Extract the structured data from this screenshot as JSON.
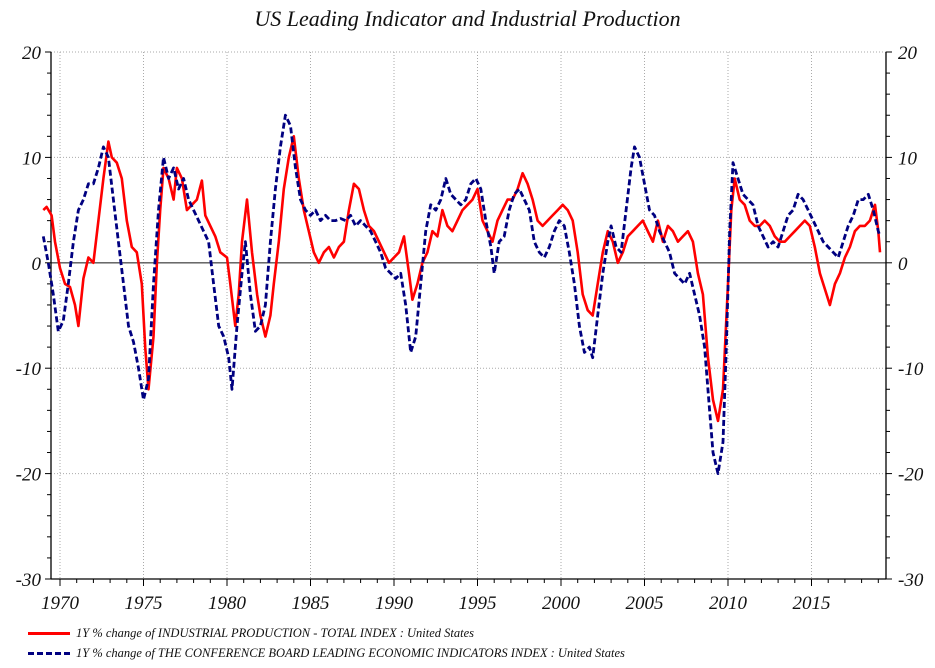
{
  "chart_data": {
    "type": "line",
    "title": "US Leading Indicator and Industrial Production",
    "xlabel": "",
    "ylabel": "",
    "xlim": [
      1969.0,
      2019.5
    ],
    "ylim": [
      -30,
      20
    ],
    "grid": true,
    "x_ticks": [
      1970,
      1975,
      1980,
      1985,
      1990,
      1995,
      2000,
      2005,
      2010,
      2015
    ],
    "y_ticks": [
      20,
      10,
      0,
      -10,
      -20,
      -30
    ],
    "y_ticks_right": [
      20,
      10,
      0,
      -10,
      -20,
      -30
    ],
    "legend_position": "bottom",
    "series": [
      {
        "name": "1Y % change of INDUSTRIAL PRODUCTION - TOTAL INDEX : United States",
        "color": "#ff0000",
        "style": "solid",
        "x": [
          1969.0,
          1969.2,
          1969.5,
          1969.7,
          1970.0,
          1970.3,
          1970.6,
          1970.9,
          1971.1,
          1971.4,
          1971.7,
          1972.0,
          1972.3,
          1972.6,
          1972.9,
          1973.1,
          1973.4,
          1973.7,
          1974.0,
          1974.3,
          1974.6,
          1974.9,
          1975.1,
          1975.3,
          1975.6,
          1975.8,
          1976.0,
          1976.2,
          1976.5,
          1976.8,
          1977.0,
          1977.3,
          1977.6,
          1977.9,
          1978.2,
          1978.5,
          1978.7,
          1979.0,
          1979.3,
          1979.6,
          1980.0,
          1980.2,
          1980.5,
          1980.7,
          1980.9,
          1981.2,
          1981.5,
          1981.8,
          1982.0,
          1982.3,
          1982.6,
          1982.8,
          1983.1,
          1983.4,
          1983.7,
          1984.0,
          1984.3,
          1984.6,
          1984.9,
          1985.2,
          1985.5,
          1985.8,
          1986.1,
          1986.4,
          1986.7,
          1987.0,
          1987.3,
          1987.6,
          1987.9,
          1988.2,
          1988.5,
          1988.8,
          1989.1,
          1989.4,
          1989.7,
          1990.0,
          1990.3,
          1990.6,
          1990.9,
          1991.1,
          1991.4,
          1991.7,
          1992.0,
          1992.3,
          1992.6,
          1992.9,
          1993.2,
          1993.5,
          1993.8,
          1994.1,
          1994.4,
          1994.7,
          1995.0,
          1995.3,
          1995.6,
          1995.9,
          1996.2,
          1996.5,
          1996.8,
          1997.1,
          1997.4,
          1997.7,
          1998.0,
          1998.3,
          1998.6,
          1998.9,
          1999.2,
          1999.5,
          1999.8,
          2000.1,
          2000.4,
          2000.7,
          2001.0,
          2001.3,
          2001.6,
          2001.9,
          2002.2,
          2002.5,
          2002.8,
          2003.1,
          2003.4,
          2003.7,
          2004.0,
          2004.3,
          2004.6,
          2004.9,
          2005.2,
          2005.5,
          2005.8,
          2006.1,
          2006.4,
          2006.7,
          2007.0,
          2007.3,
          2007.6,
          2007.9,
          2008.2,
          2008.5,
          2008.8,
          2009.1,
          2009.4,
          2009.7,
          2010.0,
          2010.2,
          2010.4,
          2010.7,
          2011.0,
          2011.3,
          2011.6,
          2011.9,
          2012.2,
          2012.5,
          2012.8,
          2013.1,
          2013.4,
          2013.7,
          2014.0,
          2014.3,
          2014.6,
          2014.9,
          2015.2,
          2015.5,
          2015.8,
          2016.1,
          2016.4,
          2016.7,
          2017.0,
          2017.3,
          2017.6,
          2017.9,
          2018.2,
          2018.5,
          2018.8,
          2019.0,
          2019.1
        ],
        "values": [
          5,
          5.3,
          4.5,
          2,
          -0.5,
          -2,
          -2.3,
          -4,
          -6,
          -1.5,
          0.5,
          0,
          4,
          8,
          11.5,
          10,
          9.5,
          8,
          4,
          1.5,
          1,
          -2,
          -8,
          -12,
          -7,
          0,
          5,
          9,
          8,
          6,
          9,
          8,
          5,
          5.5,
          6,
          7.8,
          4.5,
          3.5,
          2.5,
          1,
          0.5,
          -2,
          -6,
          -3,
          2,
          6,
          1,
          -3,
          -5,
          -7,
          -5,
          -2,
          2,
          7,
          10,
          12,
          8,
          5,
          3,
          1,
          0,
          1,
          1.5,
          0.5,
          1.5,
          2,
          5,
          7.5,
          7,
          5,
          3.5,
          3,
          2,
          1,
          0,
          0.5,
          1,
          2.5,
          -1,
          -3.5,
          -2,
          0,
          1,
          3,
          2.5,
          5,
          3.5,
          3,
          4,
          5,
          5.5,
          6,
          7,
          4,
          3,
          2,
          4,
          5,
          6,
          6,
          7,
          8.5,
          7.5,
          6,
          4,
          3.5,
          4,
          4.5,
          5,
          5.5,
          5,
          4,
          1,
          -3,
          -4.5,
          -5,
          -2,
          1,
          3,
          2,
          0,
          1,
          2.5,
          3,
          3.5,
          4,
          3,
          2,
          4,
          2,
          3.5,
          3,
          2,
          2.5,
          3,
          2,
          -1,
          -3,
          -9,
          -13,
          -15,
          -12,
          -2,
          5,
          8,
          6,
          5.5,
          4,
          3.5,
          3.5,
          4,
          3.5,
          2.5,
          2,
          2,
          2.5,
          3,
          3.5,
          4,
          3.5,
          1.5,
          -1,
          -2.5,
          -4,
          -2,
          -1,
          0.5,
          1.5,
          3,
          3.5,
          3.5,
          4,
          5.5,
          3,
          1
        ]
      },
      {
        "name": "1Y % change of THE CONFERENCE BOARD LEADING ECONOMIC INDICATORS INDEX : United States",
        "color": "#000080",
        "style": "dashed",
        "x": [
          1969.0,
          1969.3,
          1969.6,
          1969.9,
          1970.2,
          1970.5,
          1970.8,
          1971.1,
          1971.4,
          1971.7,
          1972.0,
          1972.3,
          1972.6,
          1972.9,
          1973.2,
          1973.5,
          1973.8,
          1974.1,
          1974.4,
          1974.7,
          1975.0,
          1975.3,
          1975.6,
          1975.9,
          1976.2,
          1976.5,
          1976.8,
          1977.1,
          1977.4,
          1977.7,
          1978.0,
          1978.3,
          1978.6,
          1978.9,
          1979.2,
          1979.5,
          1979.8,
          1980.1,
          1980.3,
          1980.6,
          1980.9,
          1981.1,
          1981.4,
          1981.7,
          1982.0,
          1982.3,
          1982.6,
          1982.9,
          1983.2,
          1983.5,
          1983.8,
          1984.1,
          1984.4,
          1984.7,
          1985.0,
          1985.3,
          1985.6,
          1985.9,
          1986.2,
          1986.5,
          1986.8,
          1987.1,
          1987.4,
          1987.7,
          1988.0,
          1988.3,
          1988.6,
          1988.9,
          1989.2,
          1989.5,
          1989.8,
          1990.1,
          1990.4,
          1990.7,
          1991.0,
          1991.3,
          1991.6,
          1991.9,
          1992.2,
          1992.5,
          1992.8,
          1993.1,
          1993.4,
          1993.7,
          1994.0,
          1994.3,
          1994.6,
          1994.9,
          1995.2,
          1995.5,
          1995.8,
          1996.0,
          1996.3,
          1996.6,
          1996.9,
          1997.2,
          1997.5,
          1997.8,
          1998.1,
          1998.4,
          1998.7,
          1999.0,
          1999.3,
          1999.6,
          1999.9,
          2000.2,
          2000.5,
          2000.8,
          2001.1,
          2001.4,
          2001.7,
          2001.9,
          2002.2,
          2002.5,
          2002.8,
          2003.0,
          2003.3,
          2003.6,
          2003.9,
          2004.2,
          2004.4,
          2004.7,
          2005.0,
          2005.3,
          2005.6,
          2005.9,
          2006.2,
          2006.5,
          2006.8,
          2007.1,
          2007.4,
          2007.7,
          2008.0,
          2008.3,
          2008.6,
          2008.9,
          2009.1,
          2009.4,
          2009.7,
          2009.9,
          2010.1,
          2010.3,
          2010.6,
          2010.9,
          2011.2,
          2011.5,
          2011.8,
          2012.1,
          2012.4,
          2012.7,
          2013.0,
          2013.3,
          2013.6,
          2013.9,
          2014.2,
          2014.5,
          2014.8,
          2015.1,
          2015.4,
          2015.7,
          2016.0,
          2016.3,
          2016.6,
          2016.9,
          2017.2,
          2017.5,
          2017.8,
          2018.1,
          2018.4,
          2018.7,
          2019.0,
          2019.1
        ],
        "values": [
          2.5,
          0,
          -3,
          -6.5,
          -5.5,
          -2,
          2,
          5,
          6,
          7.5,
          7.5,
          9,
          11,
          10,
          6,
          2,
          -2,
          -6,
          -7.5,
          -10,
          -13,
          -11,
          -2,
          5,
          10,
          8,
          9,
          7,
          8,
          6,
          5,
          4,
          3,
          2,
          -2,
          -6,
          -7,
          -9,
          -12,
          -6,
          -1,
          2,
          -3,
          -6.5,
          -6,
          -4,
          2,
          7,
          11,
          14,
          13,
          9,
          6,
          5,
          4.5,
          5,
          4,
          4.5,
          4,
          4,
          4.2,
          4,
          4.5,
          3.5,
          4,
          3.5,
          3,
          2,
          1,
          -0.5,
          -1,
          -1.5,
          -1,
          -4,
          -8.5,
          -7,
          -2,
          3,
          5.5,
          5,
          6,
          8,
          6.5,
          6,
          5.5,
          6,
          7.5,
          8,
          7,
          4,
          1.5,
          -1,
          2,
          2.5,
          5,
          6.5,
          7,
          6,
          5,
          2,
          1,
          0.5,
          1.5,
          3,
          4,
          3.5,
          1,
          -2,
          -6,
          -8.5,
          -8,
          -9,
          -5,
          -1,
          2,
          3.5,
          1.5,
          1,
          5,
          9,
          11,
          10,
          7.5,
          5,
          4.5,
          3,
          2,
          1,
          -1,
          -1.5,
          -2,
          -1,
          -3,
          -5,
          -8,
          -14,
          -18,
          -20,
          -17,
          -8,
          3,
          9.5,
          8,
          6.5,
          6,
          5.5,
          3.5,
          2.5,
          1.5,
          2,
          1.5,
          3,
          4.5,
          5,
          6.5,
          6,
          5,
          4,
          3,
          2,
          1.5,
          1,
          0.5,
          2,
          3.5,
          4.5,
          6,
          6,
          6.5,
          5,
          3,
          2.5
        ]
      }
    ]
  },
  "legend": [
    {
      "label": "1Y % change of INDUSTRIAL PRODUCTION - TOTAL INDEX : United States",
      "color": "#ff0000",
      "style": "solid"
    },
    {
      "label": "1Y % change of THE CONFERENCE BOARD LEADING ECONOMIC INDICATORS INDEX : United States",
      "color": "#000080",
      "style": "dashed"
    }
  ]
}
